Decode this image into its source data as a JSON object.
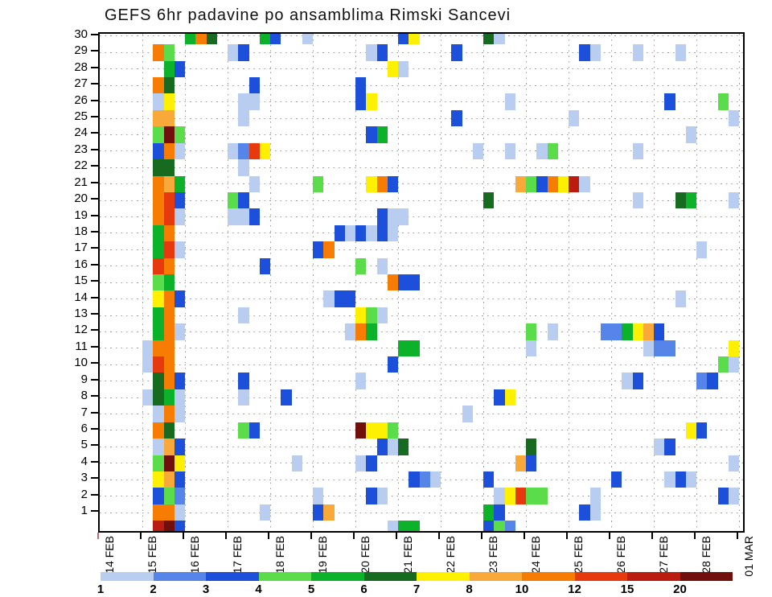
{
  "title": "GEFS 6hr padavine po ansamblima Rimski Sancevi",
  "axis": {
    "color": "#000000",
    "grid_dot_color": "#9a9a9a",
    "first_tick_color": "#c46a6a"
  },
  "chart_data": {
    "type": "heatmap",
    "title": "GEFS 6hr padavine po ansamblima Rimski Sancevi",
    "xlabel": "",
    "ylabel": "",
    "x_axis": {
      "tick_labels": [
        "14 FEB",
        "15 FEB",
        "16 FEB",
        "17 FEB",
        "18 FEB",
        "19 FEB",
        "20 FEB",
        "21 FEB",
        "22 FEB",
        "23 FEB",
        "24 FEB",
        "25 FEB",
        "26 FEB",
        "27 FEB",
        "28 FEB",
        "01 MAR"
      ],
      "steps_per_day": 4,
      "total_steps": 60
    },
    "y_axis": {
      "tick_labels": [
        "30",
        "29",
        "28",
        "27",
        "26",
        "25",
        "24",
        "23",
        "22",
        "21",
        "20",
        "19",
        "18",
        "17",
        "16",
        "15",
        "14",
        "13",
        "12",
        "11",
        "10",
        "9",
        "8",
        "7",
        "6",
        "5",
        "4",
        "3",
        "2",
        "1"
      ]
    },
    "grid": "dotted",
    "legend_position": "bottom",
    "colorbar": {
      "boundary_labels": [
        "1",
        "2",
        "3",
        "4",
        "5",
        "6",
        "7",
        "8",
        "10",
        "12",
        "15",
        "20"
      ],
      "colors": [
        "#b9cdf1",
        "#5585e8",
        "#1c50da",
        "#5bdc4b",
        "#0cb32a",
        "#166b21",
        "#fdf002",
        "#f8a93a",
        "#f67c03",
        "#e63a0e",
        "#ba1c0f",
        "#700f0c"
      ]
    },
    "cells_format": "[ensemble_member_row, six_hour_time_step_col, color_level_1_to_12]",
    "cells": [
      [
        30,
        8,
        5
      ],
      [
        30,
        9,
        9
      ],
      [
        30,
        10,
        6
      ],
      [
        30,
        15,
        5
      ],
      [
        30,
        16,
        3
      ],
      [
        30,
        19,
        1
      ],
      [
        30,
        28,
        3
      ],
      [
        30,
        29,
        7
      ],
      [
        30,
        36,
        6
      ],
      [
        30,
        37,
        1
      ],
      [
        29,
        5,
        9
      ],
      [
        29,
        6,
        4
      ],
      [
        29,
        12,
        1
      ],
      [
        29,
        13,
        3
      ],
      [
        29,
        25,
        1
      ],
      [
        29,
        26,
        3
      ],
      [
        29,
        33,
        3
      ],
      [
        29,
        45,
        3
      ],
      [
        29,
        46,
        1
      ],
      [
        29,
        50,
        1
      ],
      [
        29,
        54,
        1
      ],
      [
        28,
        6,
        5
      ],
      [
        28,
        7,
        3
      ],
      [
        28,
        27,
        7
      ],
      [
        28,
        28,
        1
      ],
      [
        27,
        5,
        9
      ],
      [
        27,
        6,
        6
      ],
      [
        27,
        14,
        3
      ],
      [
        27,
        24,
        3
      ],
      [
        26,
        5,
        1
      ],
      [
        26,
        6,
        7
      ],
      [
        26,
        13,
        1
      ],
      [
        26,
        14,
        1
      ],
      [
        26,
        24,
        3
      ],
      [
        26,
        25,
        7
      ],
      [
        26,
        38,
        1
      ],
      [
        26,
        53,
        3
      ],
      [
        26,
        58,
        4
      ],
      [
        25,
        5,
        8
      ],
      [
        25,
        6,
        8
      ],
      [
        25,
        13,
        1
      ],
      [
        25,
        33,
        3
      ],
      [
        25,
        44,
        1
      ],
      [
        25,
        59,
        1
      ],
      [
        24,
        5,
        4
      ],
      [
        24,
        6,
        12
      ],
      [
        24,
        7,
        4
      ],
      [
        24,
        25,
        3
      ],
      [
        24,
        26,
        5
      ],
      [
        24,
        55,
        1
      ],
      [
        23,
        5,
        3
      ],
      [
        23,
        6,
        9
      ],
      [
        23,
        7,
        1
      ],
      [
        23,
        12,
        1
      ],
      [
        23,
        13,
        2
      ],
      [
        23,
        14,
        10
      ],
      [
        23,
        15,
        7
      ],
      [
        23,
        35,
        1
      ],
      [
        23,
        38,
        1
      ],
      [
        23,
        41,
        1
      ],
      [
        23,
        42,
        4
      ],
      [
        23,
        50,
        1
      ],
      [
        22,
        5,
        6
      ],
      [
        22,
        6,
        6
      ],
      [
        22,
        13,
        1
      ],
      [
        21,
        5,
        9
      ],
      [
        21,
        6,
        8
      ],
      [
        21,
        7,
        5
      ],
      [
        21,
        14,
        1
      ],
      [
        21,
        20,
        4
      ],
      [
        21,
        25,
        7
      ],
      [
        21,
        26,
        9
      ],
      [
        21,
        27,
        3
      ],
      [
        21,
        39,
        8
      ],
      [
        21,
        40,
        4
      ],
      [
        21,
        41,
        3
      ],
      [
        21,
        42,
        9
      ],
      [
        21,
        43,
        7
      ],
      [
        21,
        44,
        11
      ],
      [
        21,
        45,
        1
      ],
      [
        20,
        5,
        9
      ],
      [
        20,
        6,
        10
      ],
      [
        20,
        7,
        3
      ],
      [
        20,
        12,
        4
      ],
      [
        20,
        13,
        3
      ],
      [
        20,
        36,
        6
      ],
      [
        20,
        50,
        1
      ],
      [
        20,
        54,
        6
      ],
      [
        20,
        55,
        5
      ],
      [
        20,
        59,
        1
      ],
      [
        19,
        5,
        9
      ],
      [
        19,
        6,
        10
      ],
      [
        19,
        7,
        1
      ],
      [
        19,
        12,
        1
      ],
      [
        19,
        13,
        1
      ],
      [
        19,
        14,
        3
      ],
      [
        19,
        26,
        3
      ],
      [
        19,
        27,
        1
      ],
      [
        19,
        28,
        1
      ],
      [
        18,
        5,
        5
      ],
      [
        18,
        6,
        9
      ],
      [
        18,
        22,
        3
      ],
      [
        18,
        23,
        1
      ],
      [
        18,
        24,
        3
      ],
      [
        18,
        25,
        1
      ],
      [
        18,
        26,
        3
      ],
      [
        18,
        27,
        1
      ],
      [
        17,
        5,
        5
      ],
      [
        17,
        6,
        10
      ],
      [
        17,
        7,
        1
      ],
      [
        17,
        20,
        3
      ],
      [
        17,
        21,
        9
      ],
      [
        17,
        56,
        1
      ],
      [
        16,
        5,
        10
      ],
      [
        16,
        6,
        9
      ],
      [
        16,
        15,
        3
      ],
      [
        16,
        24,
        4
      ],
      [
        16,
        26,
        1
      ],
      [
        15,
        5,
        4
      ],
      [
        15,
        6,
        5
      ],
      [
        15,
        27,
        9
      ],
      [
        15,
        28,
        3
      ],
      [
        15,
        29,
        3
      ],
      [
        14,
        5,
        7
      ],
      [
        14,
        6,
        9
      ],
      [
        14,
        7,
        3
      ],
      [
        14,
        21,
        1
      ],
      [
        14,
        22,
        3
      ],
      [
        14,
        23,
        3
      ],
      [
        14,
        54,
        1
      ],
      [
        13,
        5,
        5
      ],
      [
        13,
        6,
        9
      ],
      [
        13,
        13,
        1
      ],
      [
        13,
        24,
        7
      ],
      [
        13,
        25,
        4
      ],
      [
        13,
        26,
        1
      ],
      [
        12,
        5,
        5
      ],
      [
        12,
        6,
        9
      ],
      [
        12,
        7,
        1
      ],
      [
        12,
        23,
        1
      ],
      [
        12,
        24,
        9
      ],
      [
        12,
        25,
        5
      ],
      [
        12,
        40,
        4
      ],
      [
        12,
        42,
        1
      ],
      [
        12,
        47,
        2
      ],
      [
        12,
        48,
        2
      ],
      [
        12,
        49,
        5
      ],
      [
        12,
        50,
        7
      ],
      [
        12,
        51,
        8
      ],
      [
        12,
        52,
        3
      ],
      [
        11,
        4,
        1
      ],
      [
        11,
        5,
        9
      ],
      [
        11,
        6,
        9
      ],
      [
        11,
        28,
        5
      ],
      [
        11,
        29,
        5
      ],
      [
        11,
        40,
        1
      ],
      [
        11,
        51,
        1
      ],
      [
        11,
        52,
        2
      ],
      [
        11,
        53,
        2
      ],
      [
        11,
        59,
        7
      ],
      [
        10,
        4,
        1
      ],
      [
        10,
        5,
        10
      ],
      [
        10,
        6,
        9
      ],
      [
        10,
        27,
        3
      ],
      [
        10,
        58,
        4
      ],
      [
        10,
        59,
        1
      ],
      [
        9,
        5,
        6
      ],
      [
        9,
        6,
        9
      ],
      [
        9,
        7,
        3
      ],
      [
        9,
        13,
        3
      ],
      [
        9,
        24,
        1
      ],
      [
        9,
        49,
        1
      ],
      [
        9,
        50,
        3
      ],
      [
        9,
        56,
        2
      ],
      [
        9,
        57,
        3
      ],
      [
        8,
        4,
        1
      ],
      [
        8,
        5,
        6
      ],
      [
        8,
        6,
        5
      ],
      [
        8,
        7,
        1
      ],
      [
        8,
        13,
        1
      ],
      [
        8,
        17,
        3
      ],
      [
        8,
        37,
        3
      ],
      [
        8,
        38,
        7
      ],
      [
        7,
        5,
        1
      ],
      [
        7,
        6,
        9
      ],
      [
        7,
        7,
        1
      ],
      [
        7,
        34,
        1
      ],
      [
        6,
        5,
        9
      ],
      [
        6,
        6,
        6
      ],
      [
        6,
        13,
        4
      ],
      [
        6,
        14,
        3
      ],
      [
        6,
        24,
        12
      ],
      [
        6,
        25,
        7
      ],
      [
        6,
        26,
        7
      ],
      [
        6,
        27,
        4
      ],
      [
        6,
        55,
        7
      ],
      [
        6,
        56,
        3
      ],
      [
        5,
        5,
        1
      ],
      [
        5,
        6,
        8
      ],
      [
        5,
        7,
        3
      ],
      [
        5,
        26,
        3
      ],
      [
        5,
        27,
        1
      ],
      [
        5,
        28,
        6
      ],
      [
        5,
        40,
        6
      ],
      [
        5,
        52,
        1
      ],
      [
        5,
        53,
        3
      ],
      [
        4,
        5,
        4
      ],
      [
        4,
        6,
        12
      ],
      [
        4,
        7,
        7
      ],
      [
        4,
        18,
        1
      ],
      [
        4,
        24,
        1
      ],
      [
        4,
        25,
        3
      ],
      [
        4,
        39,
        8
      ],
      [
        4,
        40,
        3
      ],
      [
        4,
        59,
        1
      ],
      [
        3,
        5,
        7
      ],
      [
        3,
        6,
        8
      ],
      [
        3,
        7,
        3
      ],
      [
        3,
        29,
        3
      ],
      [
        3,
        30,
        2
      ],
      [
        3,
        31,
        1
      ],
      [
        3,
        36,
        3
      ],
      [
        3,
        48,
        3
      ],
      [
        3,
        53,
        1
      ],
      [
        3,
        54,
        3
      ],
      [
        3,
        55,
        1
      ],
      [
        2,
        5,
        3
      ],
      [
        2,
        6,
        4
      ],
      [
        2,
        7,
        2
      ],
      [
        2,
        20,
        1
      ],
      [
        2,
        25,
        3
      ],
      [
        2,
        26,
        1
      ],
      [
        2,
        37,
        1
      ],
      [
        2,
        38,
        7
      ],
      [
        2,
        39,
        10
      ],
      [
        2,
        40,
        4
      ],
      [
        2,
        41,
        4
      ],
      [
        2,
        46,
        1
      ],
      [
        2,
        58,
        3
      ],
      [
        2,
        59,
        1
      ],
      [
        1,
        5,
        9
      ],
      [
        1,
        6,
        9
      ],
      [
        1,
        7,
        1
      ],
      [
        1,
        15,
        1
      ],
      [
        1,
        20,
        3
      ],
      [
        1,
        21,
        8
      ],
      [
        1,
        36,
        5
      ],
      [
        1,
        37,
        3
      ],
      [
        1,
        45,
        3
      ],
      [
        1,
        46,
        1
      ],
      [
        0,
        5,
        11
      ],
      [
        0,
        6,
        12
      ],
      [
        0,
        7,
        3
      ],
      [
        0,
        27,
        1
      ],
      [
        0,
        28,
        5
      ],
      [
        0,
        29,
        5
      ],
      [
        0,
        36,
        3
      ],
      [
        0,
        37,
        4
      ],
      [
        0,
        38,
        2
      ]
    ]
  }
}
